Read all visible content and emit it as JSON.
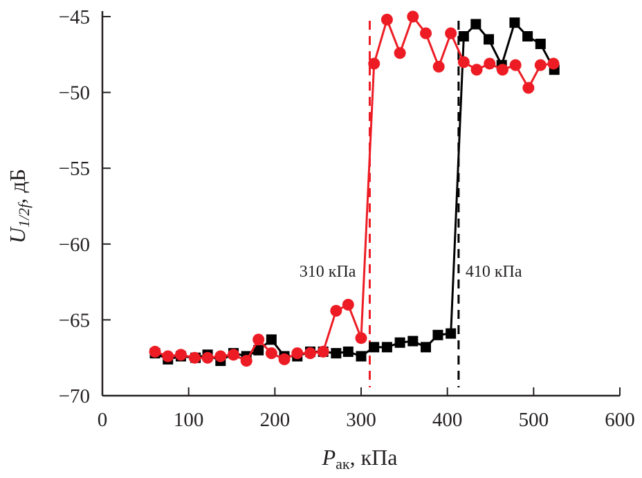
{
  "chart_data": {
    "type": "line",
    "title": "",
    "xlabel": {
      "main": "P",
      "sub": "ак",
      "suffix": ", кПа"
    },
    "ylabel": {
      "main": "U",
      "sub": "1/2f",
      "suffix": ", дБ"
    },
    "xlim": [
      0,
      600
    ],
    "ylim": [
      -70,
      -45
    ],
    "xticks": [
      0,
      100,
      200,
      300,
      400,
      500,
      600
    ],
    "yticks": [
      -70,
      -65,
      -60,
      -55,
      -50,
      -45
    ],
    "xtick_labels": [
      "0",
      "100",
      "200",
      "300",
      "400",
      "500",
      "600"
    ],
    "ytick_labels": [
      "−70",
      "−65",
      "−60",
      "−55",
      "−50",
      "−45"
    ],
    "grid": false,
    "legend": null,
    "series": [
      {
        "name": "black-squares",
        "color": "#000000",
        "marker": "square",
        "x": [
          61,
          76,
          91,
          108,
          122,
          137,
          152,
          167,
          181,
          196,
          211,
          226,
          241,
          256,
          271,
          285,
          300,
          315,
          330,
          345,
          360,
          375,
          389,
          404,
          419,
          433,
          448,
          463,
          478,
          493,
          508,
          524
        ],
        "y": [
          -67.2,
          -67.6,
          -67.4,
          -67.5,
          -67.3,
          -67.7,
          -67.2,
          -67.4,
          -67.0,
          -66.3,
          -67.4,
          -67.4,
          -67.1,
          -67.1,
          -67.2,
          -67.1,
          -67.4,
          -66.8,
          -66.8,
          -66.5,
          -66.4,
          -66.8,
          -66.0,
          -65.9,
          -46.3,
          -45.5,
          -46.5,
          -48.2,
          -45.4,
          -46.3,
          -46.8,
          -48.5
        ]
      },
      {
        "name": "red-circles",
        "color": "#ed1c24",
        "marker": "circle",
        "x": [
          61,
          76,
          91,
          107,
          122,
          137,
          152,
          167,
          181,
          196,
          211,
          226,
          241,
          256,
          271,
          285,
          300,
          315,
          330,
          345,
          360,
          375,
          390,
          404,
          419,
          434,
          449,
          464,
          479,
          494,
          508,
          523
        ],
        "y": [
          -67.1,
          -67.4,
          -67.3,
          -67.5,
          -67.5,
          -67.4,
          -67.3,
          -67.7,
          -66.3,
          -67.2,
          -67.6,
          -67.2,
          -67.2,
          -67.1,
          -64.4,
          -64.0,
          -66.2,
          -48.1,
          -45.2,
          -47.4,
          -45.0,
          -46.1,
          -48.3,
          -46.1,
          -48.0,
          -48.5,
          -48.1,
          -48.5,
          -48.2,
          -49.7,
          -48.2,
          -48.1
        ]
      }
    ],
    "threshold_lines": [
      {
        "name": "threshold-310",
        "x": 310,
        "color": "#ed1c24",
        "label": "310 кПа",
        "label_side": "left"
      },
      {
        "name": "threshold-410",
        "x": 413,
        "color": "#000000",
        "label": "410 кПа",
        "label_side": "right"
      }
    ]
  }
}
